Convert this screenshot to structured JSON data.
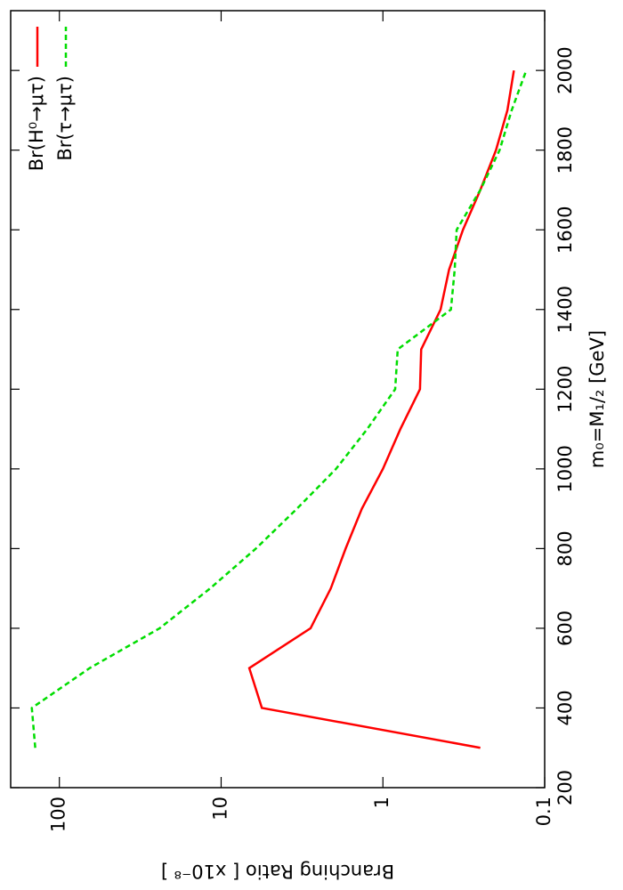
{
  "chart_data": {
    "type": "line",
    "x_label": "m₀=M₁/₂  [GeV]",
    "y_label": "Branching Ratio  [ x10⁻⁸ ]",
    "x": [
      300,
      400,
      500,
      600,
      700,
      800,
      900,
      1000,
      1100,
      1200,
      1300,
      1400,
      1500,
      1600,
      1700,
      1800,
      1900,
      2000
    ],
    "series": [
      {
        "name": "Br(H⁰→μτ)",
        "color": "#ff0000",
        "linestyle": "solid",
        "values": [
          0.25,
          5.6,
          6.7,
          2.8,
          2.1,
          1.7,
          1.35,
          1.0,
          0.78,
          0.59,
          0.58,
          0.44,
          0.39,
          0.32,
          0.25,
          0.2,
          0.17,
          0.155
        ]
      },
      {
        "name": "Br(τ→μτ)",
        "color": "#00dd00",
        "linestyle": "dashed",
        "values": [
          141,
          148,
          65,
          24,
          11.7,
          6.1,
          3.4,
          1.95,
          1.25,
          0.84,
          0.81,
          0.38,
          0.36,
          0.35,
          0.25,
          0.19,
          0.16,
          0.13
        ]
      }
    ],
    "xlim": [
      200,
      2150
    ],
    "xticks": [
      200,
      400,
      600,
      800,
      1000,
      1200,
      1400,
      1600,
      1800,
      2000
    ],
    "ylim": [
      0.1,
      200
    ],
    "yticks": [
      0.1,
      1,
      10,
      100
    ],
    "ylog": true,
    "grid": false,
    "legend": "top right",
    "rotation": -90
  }
}
